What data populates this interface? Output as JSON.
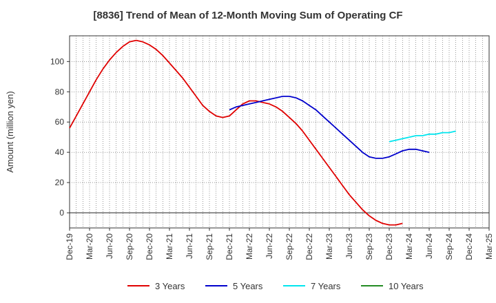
{
  "chart_data": {
    "type": "line",
    "title": "[8836]  Trend of Mean of 12-Month Moving Sum of Operating CF",
    "xlabel": "",
    "ylabel": "Amount (million yen)",
    "ylim": [
      -10,
      117
    ],
    "yticks": [
      0,
      20,
      40,
      60,
      80,
      100
    ],
    "grid": true,
    "legend_position": "bottom",
    "x_labels": [
      "Dec-19",
      "Mar-20",
      "Jun-20",
      "Sep-20",
      "Dec-20",
      "Mar-21",
      "Jun-21",
      "Sep-21",
      "Dec-21",
      "Mar-22",
      "Jun-22",
      "Sep-22",
      "Dec-22",
      "Mar-23",
      "Jun-23",
      "Sep-23",
      "Dec-23",
      "Mar-24",
      "Jun-24",
      "Sep-24",
      "Dec-24",
      "Mar-25"
    ],
    "x_start_month_index": 0,
    "x_end_month_index": 63,
    "series": [
      {
        "name": "3 Years",
        "color": "#e00000",
        "start_month_index": 0,
        "values": [
          56,
          64,
          72,
          80,
          88,
          95,
          101,
          106,
          110,
          113,
          114,
          113,
          111,
          108,
          104,
          99,
          94,
          89,
          83,
          77,
          71,
          67,
          64,
          63,
          64,
          68,
          72,
          74,
          74,
          73,
          72,
          70,
          67,
          63,
          59,
          54,
          48,
          42,
          36,
          30,
          24,
          18,
          12,
          7,
          2,
          -2,
          -5,
          -7,
          -8,
          -8,
          -7
        ]
      },
      {
        "name": "5 Years",
        "color": "#0000cc",
        "start_month_index": 24,
        "values": [
          68,
          70,
          71,
          72,
          73,
          74,
          75,
          76,
          77,
          77,
          76,
          74,
          71,
          68,
          64,
          60,
          56,
          52,
          48,
          44,
          40,
          37,
          36,
          36,
          37,
          39,
          41,
          42,
          42,
          41,
          40
        ]
      },
      {
        "name": "7 Years",
        "color": "#00e5ee",
        "start_month_index": 48,
        "values": [
          47,
          48,
          49,
          50,
          51,
          51,
          52,
          52,
          53,
          53,
          54
        ]
      },
      {
        "name": "10 Years",
        "color": "#228b22",
        "start_month_index": 0,
        "values": []
      }
    ]
  }
}
